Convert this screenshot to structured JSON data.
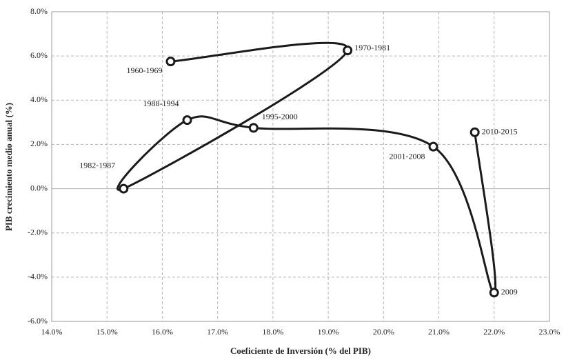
{
  "chart_data": {
    "type": "line",
    "x_label": "Coeficiente de Inversión (% del PIB)",
    "y_label": "PIB crecimiento medio anual (%)",
    "labels": [
      "1960-1969",
      "1970-1981",
      "1982-1987",
      "1988-1994",
      "1995-2000",
      "2001-2008",
      "2009",
      "2010-2015"
    ],
    "x": [
      16.15,
      19.35,
      15.3,
      16.45,
      17.65,
      20.9,
      22.0,
      21.65
    ],
    "values": [
      5.75,
      6.25,
      0.0,
      3.1,
      2.75,
      1.9,
      -4.7,
      2.55
    ],
    "color": "#1a1a1a",
    "xlim": [
      14,
      23
    ],
    "xticks": [
      {
        "value": 14,
        "label": "14.0%"
      },
      {
        "value": 15,
        "label": "15.0%"
      },
      {
        "value": 16,
        "label": "16.0%"
      },
      {
        "value": 17,
        "label": "17.0%"
      },
      {
        "value": 18,
        "label": "18.0%"
      },
      {
        "value": 19,
        "label": "19.0%"
      },
      {
        "value": 20,
        "label": "20.0%"
      },
      {
        "value": 21,
        "label": "21.0%"
      },
      {
        "value": 22,
        "label": "22.0%"
      },
      {
        "value": 23,
        "label": "23.0%"
      }
    ],
    "ylim": [
      -6,
      8
    ],
    "yticks": [
      {
        "value": -6,
        "label": "-6.0%"
      },
      {
        "value": -4,
        "label": "-4.0%"
      },
      {
        "value": -2,
        "label": "-2.0%"
      },
      {
        "value": 0,
        "label": "0.0%"
      },
      {
        "value": 2,
        "label": "2.0%"
      },
      {
        "value": 4,
        "label": "4.0%"
      },
      {
        "value": 6,
        "label": "6.0%"
      },
      {
        "value": 8,
        "label": "8.0%"
      }
    ],
    "grid": true
  }
}
